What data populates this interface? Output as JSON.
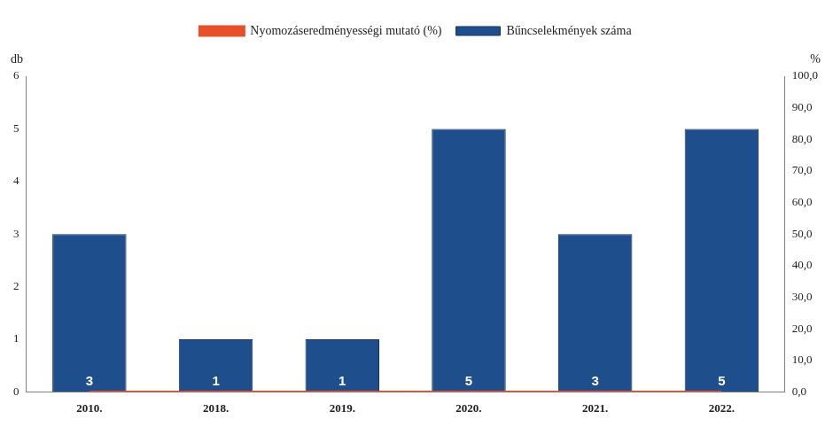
{
  "chart_data": {
    "type": "bar",
    "categories": [
      "2010.",
      "2018.",
      "2019.",
      "2020.",
      "2021.",
      "2022."
    ],
    "series": [
      {
        "name": "Bűncselekmények száma",
        "type": "bar",
        "color": "#1f4e8c",
        "values": [
          3,
          1,
          1,
          5,
          3,
          5
        ]
      },
      {
        "name": "Nyomozáseredményességi mutató (%)",
        "type": "line",
        "color": "#e8502a",
        "axis": "y2",
        "values": [
          0,
          0,
          0,
          0,
          0,
          0
        ]
      }
    ],
    "ylabel": "db",
    "y2label": "%",
    "ylim": [
      0,
      6
    ],
    "yticks": [
      0,
      1,
      2,
      3,
      4,
      5,
      6
    ],
    "y2lim": [
      0,
      100
    ],
    "y2ticks": [
      {
        "value": 0,
        "label": "0,0"
      },
      {
        "value": 10,
        "label": "10,0"
      },
      {
        "value": 20,
        "label": "20,0"
      },
      {
        "value": 30,
        "label": "30,0"
      },
      {
        "value": 40,
        "label": "40,0"
      },
      {
        "value": 50,
        "label": "50,0"
      },
      {
        "value": 60,
        "label": "60,0"
      },
      {
        "value": 70,
        "label": "70,0"
      },
      {
        "value": 80,
        "label": "80,0"
      },
      {
        "value": 90,
        "label": "90,0"
      },
      {
        "value": 100,
        "label": "100,0"
      }
    ],
    "legend": "top",
    "grid": false,
    "data_labels": true
  }
}
